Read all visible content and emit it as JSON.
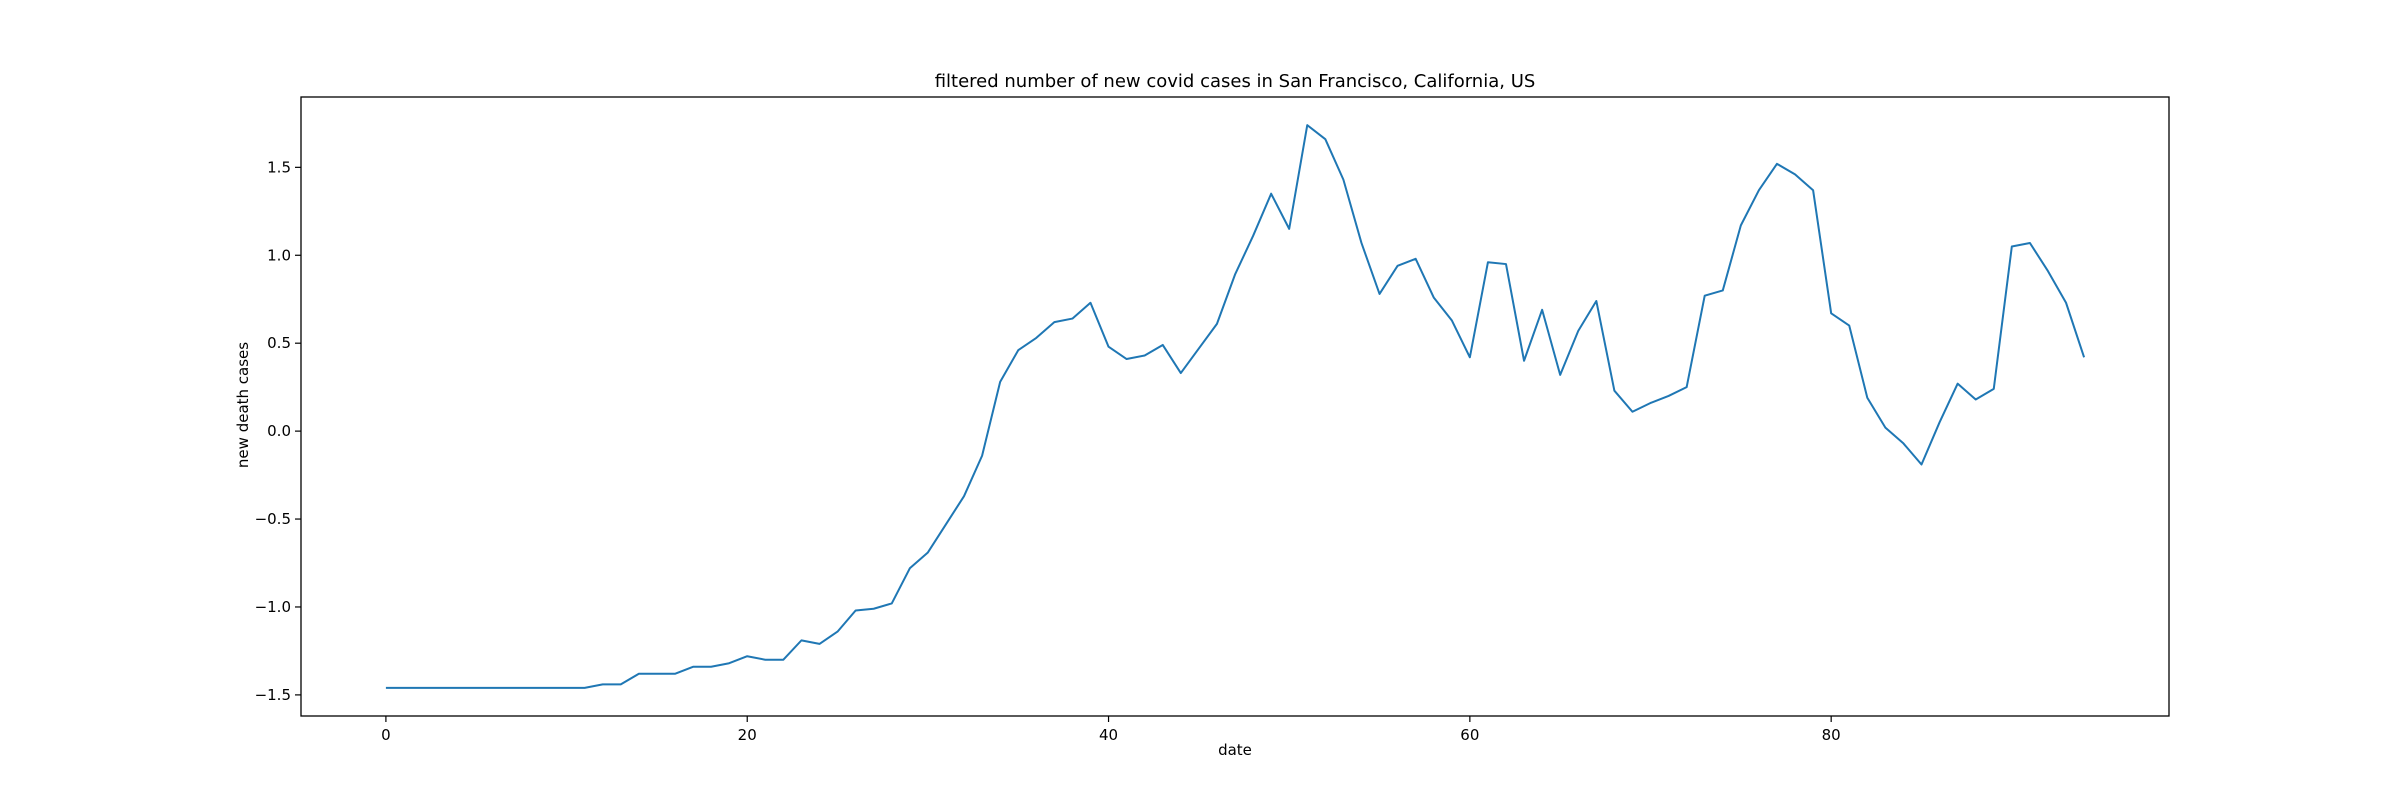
{
  "chart_data": {
    "type": "line",
    "title": "filtered number of new covid cases in San Francisco, California, US",
    "xlabel": "date",
    "ylabel": "new death cases",
    "xlim": [
      -4.7,
      98.7
    ],
    "ylim": [
      -1.62,
      1.9
    ],
    "x_ticks": [
      0,
      20,
      40,
      60,
      80
    ],
    "x_tick_labels": [
      "0",
      "20",
      "40",
      "60",
      "80"
    ],
    "y_ticks": [
      -1.5,
      -1.0,
      -0.5,
      0.0,
      0.5,
      1.0,
      1.5
    ],
    "y_tick_labels": [
      "−1.5",
      "−1.0",
      "−0.5",
      "0.0",
      "0.5",
      "1.0",
      "1.5"
    ],
    "grid": false,
    "line_color": "#1f77b4",
    "series": [
      {
        "x": [
          0,
          1,
          2,
          3,
          4,
          5,
          6,
          7,
          8,
          9,
          10,
          11,
          12,
          13,
          14,
          15,
          16,
          17,
          18,
          19,
          20,
          21,
          22,
          23,
          24,
          25,
          26,
          27,
          28,
          29,
          30,
          31,
          32,
          33,
          34,
          35,
          36,
          37,
          38,
          39,
          40,
          41,
          42,
          43,
          44,
          45,
          46,
          47,
          48,
          49,
          50,
          51,
          52,
          53,
          54,
          55,
          56,
          57,
          58,
          59,
          60,
          61,
          62,
          63,
          64,
          65,
          66,
          67,
          68,
          69,
          70,
          71,
          72,
          73,
          74,
          75,
          76,
          77,
          78,
          79,
          80,
          81,
          82,
          83,
          84,
          85,
          86,
          87,
          88,
          89,
          90,
          91,
          92,
          93,
          94
        ],
        "values": [
          -1.46,
          -1.46,
          -1.46,
          -1.46,
          -1.46,
          -1.46,
          -1.46,
          -1.46,
          -1.46,
          -1.46,
          -1.46,
          -1.46,
          -1.44,
          -1.44,
          -1.38,
          -1.38,
          -1.38,
          -1.34,
          -1.34,
          -1.32,
          -1.28,
          -1.3,
          -1.3,
          -1.19,
          -1.21,
          -1.14,
          -1.02,
          -1.01,
          -0.98,
          -0.78,
          -0.69,
          -0.53,
          -0.37,
          -0.14,
          0.28,
          0.46,
          0.53,
          0.62,
          0.64,
          0.73,
          0.48,
          0.41,
          0.43,
          0.49,
          0.33,
          0.47,
          0.61,
          0.89,
          1.11,
          1.35,
          1.15,
          1.74,
          1.66,
          1.43,
          1.07,
          0.78,
          0.94,
          0.98,
          0.76,
          0.63,
          0.42,
          0.96,
          0.95,
          0.4,
          0.69,
          0.32,
          0.57,
          0.74,
          0.23,
          0.11,
          0.16,
          0.2,
          0.25,
          0.77,
          0.8,
          1.17,
          1.37,
          1.52,
          1.46,
          1.37,
          0.67,
          0.6,
          0.19,
          0.02,
          -0.07,
          -0.19,
          0.05,
          0.27,
          0.18,
          0.24,
          1.05,
          1.07,
          0.91,
          0.73,
          0.42
        ]
      }
    ]
  }
}
